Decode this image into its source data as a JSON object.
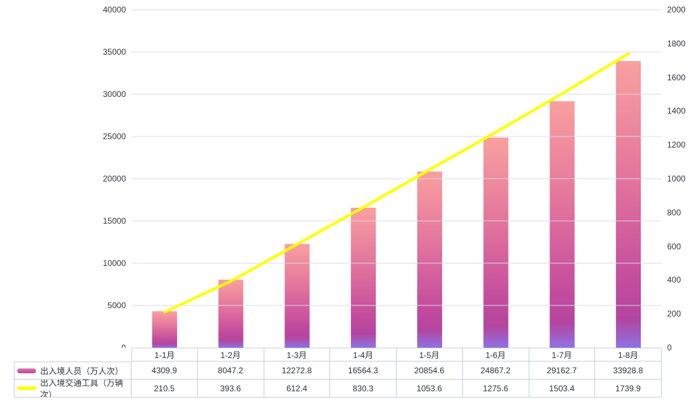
{
  "chart_data": {
    "type": "bar",
    "title": "",
    "categories": [
      "1-1月",
      "1-2月",
      "1-3月",
      "1-4月",
      "1-5月",
      "1-6月",
      "1-7月",
      "1-8月"
    ],
    "series": [
      {
        "name": "出入境人员（万人次）",
        "type": "bar",
        "axis": "left",
        "values": [
          4309.9,
          8047.2,
          12272.8,
          16564.3,
          20854.6,
          24867.2,
          29162.7,
          33928.8
        ]
      },
      {
        "name": "出入境交通工具（万辆次）",
        "type": "line",
        "axis": "right",
        "values": [
          210.5,
          393.6,
          612.4,
          830.3,
          1053.6,
          1275.6,
          1503.4,
          1739.9
        ]
      }
    ],
    "left_axis": {
      "min": 0,
      "max": 40000,
      "step": 5000,
      "ticks": [
        "40000",
        "35000",
        "30000",
        "25000",
        "20000",
        "15000",
        "10000",
        "5000",
        "0"
      ]
    },
    "right_axis": {
      "min": 0,
      "max": 2000,
      "step": 200,
      "ticks": [
        "2000",
        "1800",
        "1600",
        "1400",
        "1200",
        "1000",
        "800",
        "600",
        "400",
        "200",
        "0"
      ]
    },
    "grid": true,
    "legend_position": "table-left"
  },
  "colors": {
    "bar_gradient_top": "#f9a09f",
    "bar_gradient_mid1": "#e2739d",
    "bar_gradient_mid2": "#c34b9e",
    "bar_gradient_mid3": "#b4459f",
    "bar_gradient_bottom": "#8e72e4",
    "line": "#ffff00",
    "gridline": "#d6dde9",
    "table_border": "#c7d1e0",
    "text": "#333740"
  }
}
